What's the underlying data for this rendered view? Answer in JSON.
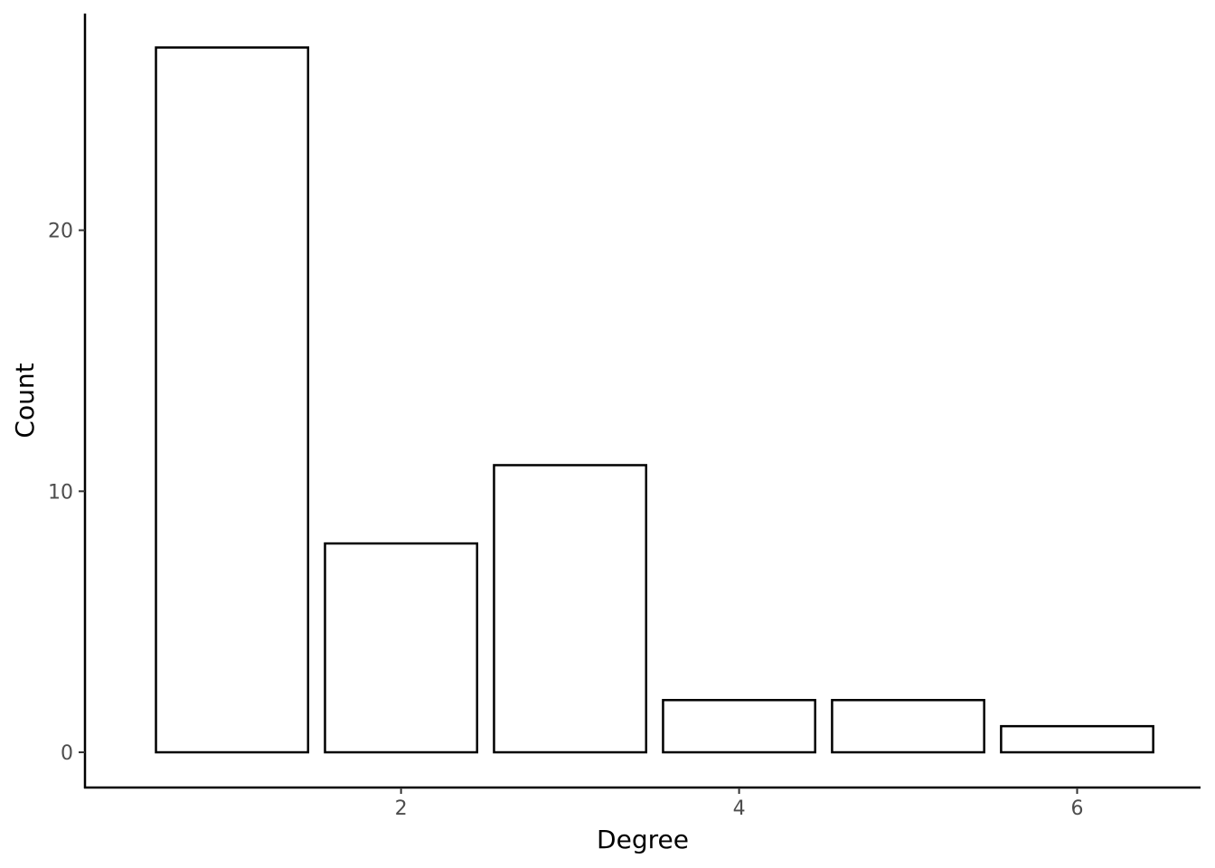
{
  "chart_data": {
    "type": "bar",
    "xlabel": "Degree",
    "ylabel": "Count",
    "x": [
      1,
      2,
      3,
      4,
      5,
      6
    ],
    "values": [
      27,
      8,
      11,
      2,
      2,
      1
    ],
    "bar_width": 0.9,
    "xlim": [
      0.13,
      6.73
    ],
    "ylim": [
      -1.35,
      28.3
    ],
    "x_ticks": [
      2,
      4,
      6
    ],
    "y_ticks": [
      0,
      10,
      20
    ],
    "grid": false,
    "colors": {
      "bar_fill": "#ffffff",
      "bar_stroke": "#000000",
      "axis": "#000000",
      "tick_text": "#4d4d4d"
    }
  }
}
